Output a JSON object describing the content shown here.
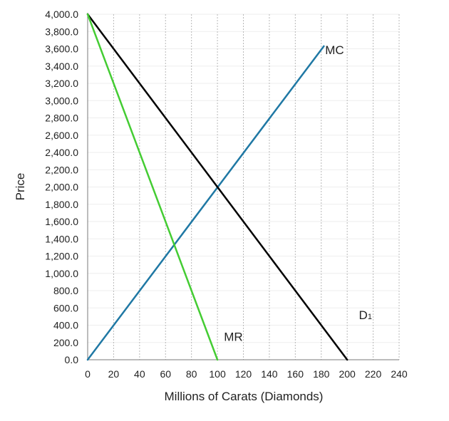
{
  "chart_data": {
    "type": "line",
    "title": "",
    "xlabel": "Millions of Carats (Diamonds)",
    "ylabel": "Price",
    "xlim": [
      0,
      240
    ],
    "ylim": [
      0,
      4000
    ],
    "x_ticks": [
      0,
      20,
      40,
      60,
      80,
      100,
      120,
      140,
      160,
      180,
      200,
      220,
      240
    ],
    "y_ticks": [
      0,
      200,
      400,
      600,
      800,
      1000,
      1200,
      1400,
      1600,
      1800,
      2000,
      2200,
      2400,
      2600,
      2800,
      3000,
      3200,
      3400,
      3600,
      3800,
      4000
    ],
    "x_tick_labels": [
      "0",
      "20",
      "40",
      "60",
      "80",
      "100",
      "120",
      "140",
      "160",
      "180",
      "200",
      "220",
      "240"
    ],
    "y_tick_labels": [
      "0.0",
      "200.0",
      "400.0",
      "600.0",
      "800.0",
      "1,000.0",
      "1,200.0",
      "1,400.0",
      "1,600.0",
      "1,800.0",
      "2,000.0",
      "2,200.0",
      "2,400.0",
      "2,600.0",
      "2,800.0",
      "3,000.0",
      "3,200.0",
      "3,400.0",
      "3,600.0",
      "3,800.0",
      "4,000.0"
    ],
    "grid": {
      "vertical": true,
      "horizontal": true
    },
    "series": [
      {
        "name": "D1",
        "color": "#000000",
        "points": [
          [
            0,
            4000
          ],
          [
            200,
            0
          ]
        ]
      },
      {
        "name": "MR",
        "color": "#44cc33",
        "points": [
          [
            0,
            4000
          ],
          [
            100,
            0
          ]
        ]
      },
      {
        "name": "MC",
        "color": "#1f78a4",
        "points": [
          [
            0,
            0
          ],
          [
            182,
            3630
          ]
        ]
      }
    ],
    "annotations": [
      {
        "text": "MC",
        "x": 183,
        "y": 3540,
        "series": "MC"
      },
      {
        "text": "MR",
        "x": 105,
        "y": 220,
        "series": "MR"
      },
      {
        "text": "D",
        "subscript": "1",
        "x": 209,
        "y": 470,
        "series": "D1"
      }
    ]
  }
}
